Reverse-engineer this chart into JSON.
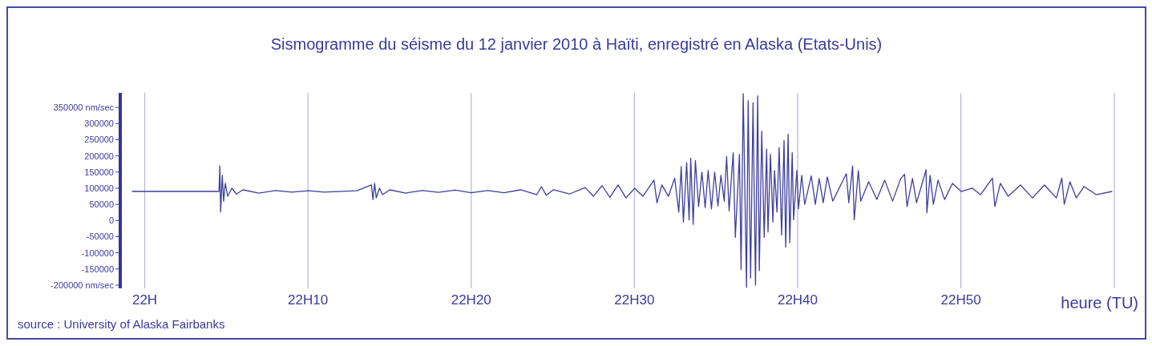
{
  "chart_data": {
    "type": "line",
    "title": "Sismogramme du séisme du 12 janvier 2010 à Haïti, enregistré en Alaska (Etats-Unis)",
    "xlabel": "heure (TU)",
    "annotations": [
      "source : University of Alaska Fairbanks"
    ],
    "x": [
      "2010-01-12T21:59:13",
      "2010-01-12T22:04:33",
      "2010-01-12T22:04:36",
      "2010-01-12T22:04:39",
      "2010-01-12T22:04:45",
      "2010-01-12T22:04:50",
      "2010-01-12T22:04:56",
      "2010-01-12T22:05:05",
      "2010-01-12T22:05:20",
      "2010-01-12T22:05:37",
      "2010-01-12T22:06:01",
      "2010-01-12T22:06:59",
      "2010-01-12T22:08:01",
      "2010-01-12T22:09:00",
      "2010-01-12T22:10:02",
      "2010-01-12T22:11:00",
      "2010-01-12T22:13:00",
      "2010-01-12T22:13:53",
      "2010-01-12T22:13:59",
      "2010-01-12T22:14:05",
      "2010-01-12T22:14:11",
      "2010-01-12T22:14:23",
      "2010-01-12T22:14:34",
      "2010-01-12T22:15:01",
      "2010-01-12T22:15:59",
      "2010-01-12T22:17:01",
      "2010-01-12T22:17:59",
      "2010-01-12T22:19:01",
      "2010-01-12T22:20:00",
      "2010-01-12T22:21:01",
      "2010-01-12T22:22:00",
      "2010-01-12T22:23:02",
      "2010-01-12T22:24:01",
      "2010-01-12T22:24:18",
      "2010-01-12T22:24:36",
      "2010-01-12T22:25:02",
      "2010-01-12T22:26:01",
      "2010-01-12T22:26:59",
      "2010-01-12T22:27:29",
      "2010-01-12T22:28:01",
      "2010-01-12T22:28:30",
      "2010-01-12T22:29:00",
      "2010-01-12T22:29:29",
      "2010-01-12T22:30:01",
      "2010-01-12T22:30:31",
      "2010-01-12T22:31:12",
      "2010-01-12T22:31:23",
      "2010-01-12T22:31:41",
      "2010-01-12T22:32:05",
      "2010-01-12T22:32:28",
      "2010-01-12T22:32:43",
      "2010-01-12T22:32:52",
      "2010-01-12T22:33:00",
      "2010-01-12T22:33:12",
      "2010-01-12T22:33:21",
      "2010-01-12T22:33:27",
      "2010-01-12T22:33:36",
      "2010-01-12T22:33:44",
      "2010-01-12T22:33:56",
      "2010-01-12T22:34:08",
      "2010-01-12T22:34:20",
      "2010-01-12T22:34:31",
      "2010-01-12T22:34:43",
      "2010-01-12T22:34:55",
      "2010-01-12T22:35:07",
      "2010-01-12T22:35:18",
      "2010-01-12T22:35:30",
      "2010-01-12T22:35:39",
      "2010-01-12T22:35:48",
      "2010-01-12T22:36:03",
      "2010-01-12T22:36:11",
      "2010-01-12T22:36:26",
      "2010-01-12T22:36:32",
      "2010-01-12T22:36:40",
      "2010-01-12T22:36:52",
      "2010-01-12T22:36:58",
      "2010-01-12T22:37:07",
      "2010-01-12T22:37:16",
      "2010-01-12T22:37:25",
      "2010-01-12T22:37:33",
      "2010-01-12T22:37:39",
      "2010-01-12T22:37:48",
      "2010-01-12T22:37:57",
      "2010-01-12T22:38:06",
      "2010-01-12T22:38:11",
      "2010-01-12T22:38:20",
      "2010-01-12T22:38:29",
      "2010-01-12T22:38:35",
      "2010-01-12T22:38:44",
      "2010-01-12T22:38:52",
      "2010-01-12T22:39:01",
      "2010-01-12T22:39:10",
      "2010-01-12T22:39:16",
      "2010-01-12T22:39:25",
      "2010-01-12T22:39:31",
      "2010-01-12T22:39:40",
      "2010-01-12T22:39:45",
      "2010-01-12T22:39:57",
      "2010-01-12T22:40:03",
      "2010-01-12T22:40:15",
      "2010-01-12T22:40:26",
      "2010-01-12T22:40:50",
      "2010-01-12T22:41:05",
      "2010-01-12T22:41:19",
      "2010-01-12T22:41:34",
      "2010-01-12T22:41:49",
      "2010-01-12T22:42:09",
      "2010-01-12T22:42:59",
      "2010-01-12T22:43:08",
      "2010-01-12T22:43:22",
      "2010-01-12T22:43:28",
      "2010-01-12T22:43:43",
      "2010-01-12T22:43:52",
      "2010-01-12T22:44:21",
      "2010-01-12T22:44:51",
      "2010-01-12T22:45:20",
      "2010-01-12T22:45:49",
      "2010-01-12T22:46:19",
      "2010-01-12T22:46:33",
      "2010-01-12T22:46:42",
      "2010-01-12T22:47:02",
      "2010-01-12T22:47:17",
      "2010-01-12T22:47:52",
      "2010-01-12T22:47:55",
      "2010-01-12T22:48:07",
      "2010-01-12T22:48:19",
      "2010-01-12T22:48:36",
      "2010-01-12T22:49:00",
      "2010-01-12T22:49:29",
      "2010-01-12T22:50:01",
      "2010-01-12T22:50:42",
      "2010-01-12T22:51:12",
      "2010-01-12T22:51:56",
      "2010-01-12T22:52:05",
      "2010-01-12T22:52:25",
      "2010-01-12T22:52:54",
      "2010-01-12T22:53:39",
      "2010-01-12T22:54:23",
      "2010-01-12T22:55:07",
      "2010-01-12T22:55:51",
      "2010-01-12T22:56:11",
      "2010-01-12T22:56:20",
      "2010-01-12T22:56:41",
      "2010-01-12T22:57:04",
      "2010-01-12T22:57:33",
      "2010-01-12T22:58:17",
      "2010-01-12T22:59:16"
    ],
    "series": [
      {
        "color": "#3f3f9f",
        "values": [
          90000,
          90000,
          169000,
          26000,
          140000,
          60000,
          115000,
          75000,
          100000,
          82000,
          95000,
          85000,
          93000,
          88000,
          92000,
          88000,
          92000,
          110000,
          65000,
          115000,
          70000,
          100000,
          80000,
          95000,
          85000,
          93000,
          87000,
          94000,
          86000,
          93000,
          86000,
          95000,
          80000,
          105000,
          78000,
          95000,
          82000,
          102000,
          75000,
          108000,
          72000,
          110000,
          70000,
          100000,
          75000,
          125000,
          55000,
          110000,
          75000,
          131000,
          26000,
          167000,
          -5000,
          179000,
          2000,
          193000,
          -12000,
          186000,
          43000,
          150000,
          40000,
          155000,
          36000,
          150000,
          45000,
          140000,
          60000,
          198000,
          30000,
          210000,
          -52000,
          205000,
          -152000,
          393000,
          -207000,
          371000,
          -178000,
          364000,
          -200000,
          386000,
          -155000,
          276000,
          -52000,
          221000,
          -36000,
          205000,
          -5000,
          155000,
          26000,
          226000,
          -45000,
          248000,
          -83000,
          267000,
          -69000,
          210000,
          2000,
          155000,
          36000,
          140000,
          50000,
          138000,
          50000,
          130000,
          55000,
          135000,
          60000,
          145000,
          55000,
          169000,
          2000,
          155000,
          60000,
          120000,
          65000,
          125000,
          60000,
          130000,
          143000,
          43000,
          130000,
          55000,
          157000,
          24000,
          140000,
          50000,
          125000,
          65000,
          115000,
          90000,
          100000,
          80000,
          131000,
          43000,
          115000,
          75000,
          110000,
          70000,
          110000,
          70000,
          131000,
          50000,
          120000,
          70000,
          105000,
          80000,
          90000
        ]
      }
    ],
    "xlim": [
      "2010-01-12T21:58:30",
      "2010-01-12T22:59:24"
    ],
    "xticks": [
      {
        "value": "2010-01-12T22:00",
        "label": "22H"
      },
      {
        "value": "2010-01-12T22:10",
        "label": "22H10"
      },
      {
        "value": "2010-01-12T22:20",
        "label": "22H20"
      },
      {
        "value": "2010-01-12T22:30",
        "label": "22H30"
      },
      {
        "value": "2010-01-12T22:40",
        "label": "22H40"
      },
      {
        "value": "2010-01-12T22:50",
        "label": "22H50"
      }
    ],
    "ylim": [
      -210000,
      395000
    ],
    "yticks": [
      {
        "value": -200000,
        "label": "-200000 nm/sec"
      },
      -150000,
      -100000,
      -50000,
      0,
      50000,
      100000,
      150000,
      200000,
      250000,
      300000,
      {
        "value": 350000,
        "label": "350000 nm/sec"
      }
    ],
    "grid": "x"
  }
}
